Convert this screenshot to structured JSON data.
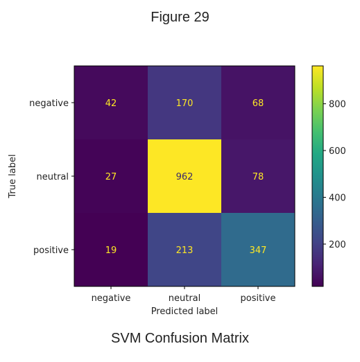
{
  "figure_title": "Figure 29",
  "caption": "SVM Confusion Matrix",
  "chart_data": {
    "type": "heatmap",
    "title": "",
    "xlabel": "Predicted label",
    "ylabel": "True label",
    "x_categories": [
      "negative",
      "neutral",
      "positive"
    ],
    "y_categories": [
      "negative",
      "neutral",
      "positive"
    ],
    "values": [
      [
        42,
        170,
        68
      ],
      [
        27,
        962,
        78
      ],
      [
        19,
        213,
        347
      ]
    ],
    "colormap": "viridis",
    "colorbar": {
      "min": 19,
      "max": 962,
      "ticks": [
        200,
        400,
        600,
        800
      ]
    },
    "grid": false
  }
}
